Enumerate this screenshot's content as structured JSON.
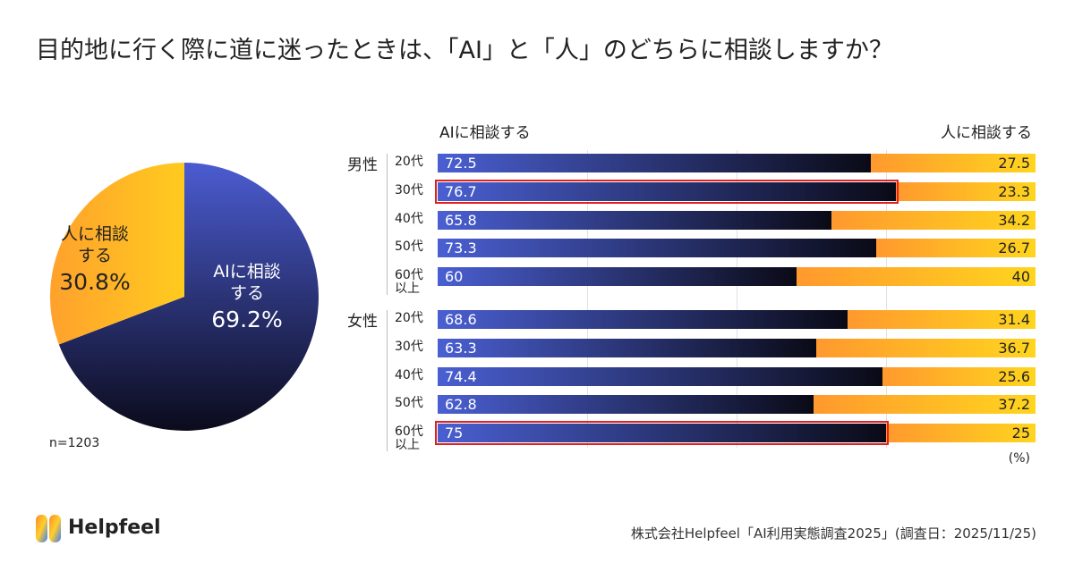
{
  "title": "目的地に行く際に道に迷ったときは、「AI」と「人」のどちらに相談しますか？",
  "logo": "Helpfeel",
  "source": "株式会社Helpfeel「AI利用実態調査2025」(調査日：2025/11/25)",
  "chart_data": [
    {
      "type": "pie",
      "categories": [
        "AIに相談する",
        "人に相談する"
      ],
      "values": [
        69.2,
        30.8
      ],
      "value_labels": [
        "69.2%",
        "30.8%"
      ],
      "colors": [
        [
          "#4b5cd1",
          "#0b0b1c"
        ],
        [
          "#ffa12c",
          "#ffcb1f"
        ]
      ],
      "note": "n=1203"
    },
    {
      "type": "bar",
      "orientation": "horizontal",
      "stacked": true,
      "groups": [
        "男性",
        "女性"
      ],
      "categories": [
        [
          "20代",
          "30代",
          "40代",
          "50代",
          "60代以上"
        ],
        [
          "20代",
          "30代",
          "40代",
          "50代",
          "60代以上"
        ]
      ],
      "series": [
        {
          "name": "AIに相談する",
          "colors": [
            "#4a5fd2",
            "#0a0a16"
          ],
          "values": [
            [
              72.5,
              76.7,
              65.8,
              73.3,
              60
            ],
            [
              68.6,
              63.3,
              74.4,
              62.8,
              75
            ]
          ]
        },
        {
          "name": "人に相談する",
          "colors": [
            "#ff992e",
            "#ffd51e"
          ],
          "values": [
            [
              27.5,
              23.3,
              34.2,
              26.7,
              40
            ],
            [
              31.4,
              36.7,
              25.6,
              37.2,
              25
            ]
          ]
        }
      ],
      "xlim": [
        0,
        100
      ],
      "gridlines": [
        25,
        50,
        75
      ],
      "highlight": [
        {
          "group": 0,
          "index": 1
        },
        {
          "group": 1,
          "index": 4
        }
      ],
      "highlight_color": "#e02020",
      "unit": "(%)"
    }
  ]
}
